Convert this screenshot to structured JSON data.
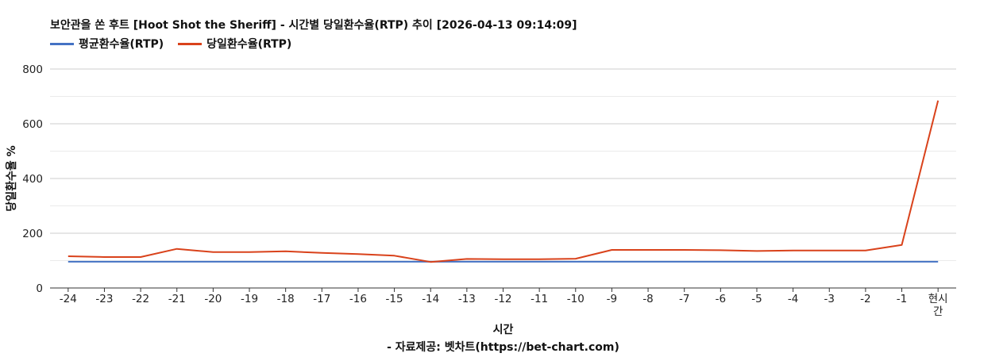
{
  "title": "보안관을 쏜 후트 [Hoot Shot the Sheriff] - 시간별 당일환수율(RTP) 추이 [2026-04-13 09:14:09]",
  "chart_data": {
    "type": "line",
    "title": "보안관을 쏜 후트 [Hoot Shot the Sheriff] - 시간별 당일환수율(RTP) 추이 [2026-04-13 09:14:09]",
    "xlabel": "시간",
    "ylabel": "당일환수율 %",
    "source": "- 자료제공: 벳차트(https://bet-chart.com)",
    "categories": [
      "-24",
      "-23",
      "-22",
      "-21",
      "-20",
      "-19",
      "-18",
      "-17",
      "-16",
      "-15",
      "-14",
      "-13",
      "-12",
      "-11",
      "-10",
      "-9",
      "-8",
      "-7",
      "-6",
      "-5",
      "-4",
      "-3",
      "-2",
      "-1",
      "현시간"
    ],
    "ylim": [
      0,
      800
    ],
    "yticks": [
      0,
      200,
      400,
      600,
      800
    ],
    "grid": true,
    "legend_position": "top-left",
    "series": [
      {
        "name": "평균환수율(RTP)",
        "color": "#4472c4",
        "values": [
          96,
          96,
          96,
          96,
          96,
          96,
          96,
          96,
          96,
          96,
          96,
          96,
          96,
          96,
          96,
          96,
          96,
          96,
          96,
          96,
          96,
          96,
          96,
          96,
          96
        ]
      },
      {
        "name": "당일환수율(RTP)",
        "color": "#d9421b",
        "values": [
          116,
          113,
          113,
          143,
          131,
          131,
          134,
          128,
          124,
          118,
          95,
          106,
          105,
          105,
          107,
          139,
          139,
          139,
          138,
          135,
          137,
          137,
          137,
          157,
          685
        ]
      }
    ]
  }
}
